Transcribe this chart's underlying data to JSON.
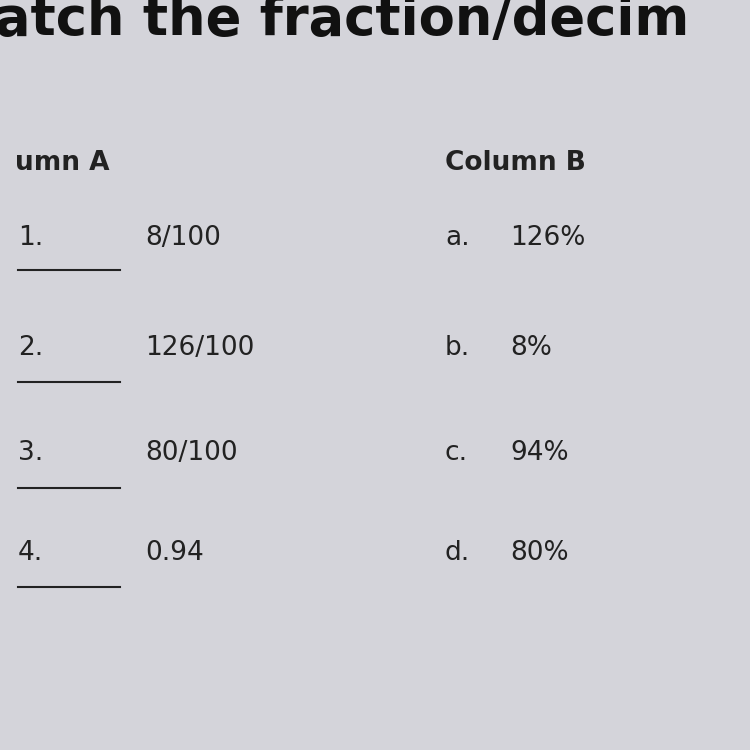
{
  "title_partial": "atch the fraction/decim",
  "col_a_header": "umn A",
  "col_b_header": "Column B",
  "col_a_items": [
    {
      "num": "1.",
      "value": "8/100"
    },
    {
      "num": "2.",
      "value": "126/100"
    },
    {
      "num": "3.",
      "value": "80/100"
    },
    {
      "num": "4.",
      "value": "0.94"
    }
  ],
  "col_b_items": [
    {
      "letter": "a.",
      "value": "126%"
    },
    {
      "letter": "b.",
      "value": "8%"
    },
    {
      "letter": "c.",
      "value": "94%"
    },
    {
      "letter": "d.",
      "value": "80%"
    }
  ],
  "background_color": "#d4d4da",
  "title_font_size": 38,
  "header_font_size": 19,
  "item_font_size": 19,
  "title_color": "#111111",
  "text_color": "#222222"
}
